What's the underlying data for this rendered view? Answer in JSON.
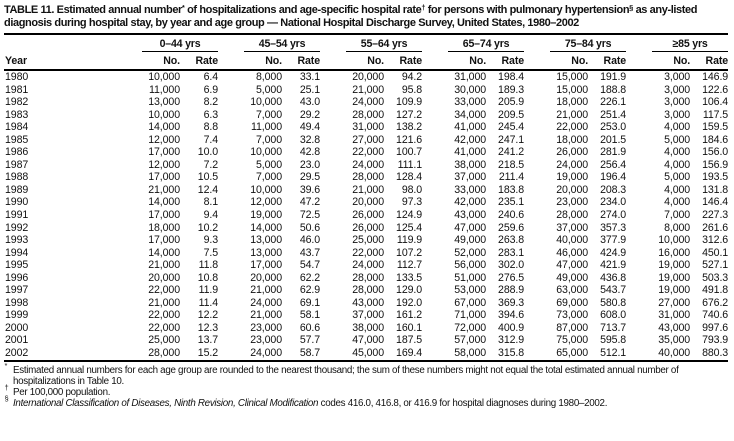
{
  "page": {
    "background": "#ffffff",
    "text_color": "#111111",
    "rule_color": "#000000"
  },
  "table": {
    "title_parts": [
      {
        "t": "TABLE 11. Estimated annual number"
      },
      {
        "t": "*",
        "sup": true
      },
      {
        "t": " of hospitalizations and age-specific hospital rate"
      },
      {
        "t": "†",
        "sup": true
      },
      {
        "t": " for persons with pulmonary hypertension"
      },
      {
        "t": "§",
        "sup": true
      },
      {
        "t": " as any-listed diagnosis during hospital stay, by year and age group — National Hospital Discharge Survey, United States, 1980–2002"
      }
    ],
    "year_header": "Year",
    "age_groups": [
      "0–44 yrs",
      "45–54 yrs",
      "55–64 yrs",
      "65–74 yrs",
      "75–84 yrs",
      "≥85 yrs"
    ],
    "subheaders": [
      "No.",
      "Rate"
    ],
    "rows": [
      {
        "year": "1980",
        "values": [
          "10,000",
          "6.4",
          "8,000",
          "33.1",
          "20,000",
          "94.2",
          "31,000",
          "198.4",
          "15,000",
          "191.9",
          "3,000",
          "146.9"
        ]
      },
      {
        "year": "1981",
        "values": [
          "11,000",
          "6.9",
          "5,000",
          "25.1",
          "21,000",
          "95.8",
          "30,000",
          "189.3",
          "15,000",
          "188.8",
          "3,000",
          "122.6"
        ]
      },
      {
        "year": "1982",
        "values": [
          "13,000",
          "8.2",
          "10,000",
          "43.0",
          "24,000",
          "109.9",
          "33,000",
          "205.9",
          "18,000",
          "226.1",
          "3,000",
          "106.4"
        ]
      },
      {
        "year": "1983",
        "values": [
          "10,000",
          "6.3",
          "7,000",
          "29.2",
          "28,000",
          "127.2",
          "34,000",
          "209.5",
          "21,000",
          "251.4",
          "3,000",
          "117.5"
        ]
      },
      {
        "year": "1984",
        "values": [
          "14,000",
          "8.8",
          "11,000",
          "49.4",
          "31,000",
          "138.2",
          "41,000",
          "245.4",
          "22,000",
          "253.0",
          "4,000",
          "159.5"
        ]
      },
      {
        "year": "1985",
        "values": [
          "12,000",
          "7.4",
          "7,000",
          "32.8",
          "27,000",
          "121.6",
          "42,000",
          "247.1",
          "18,000",
          "201.5",
          "5,000",
          "184.6"
        ]
      },
      {
        "year": "1986",
        "values": [
          "17,000",
          "10.0",
          "10,000",
          "42.8",
          "22,000",
          "100.7",
          "41,000",
          "241.2",
          "26,000",
          "281.9",
          "4,000",
          "156.0"
        ]
      },
      {
        "year": "1987",
        "values": [
          "12,000",
          "7.2",
          "5,000",
          "23.0",
          "24,000",
          "111.1",
          "38,000",
          "218.5",
          "24,000",
          "256.4",
          "4,000",
          "156.9"
        ]
      },
      {
        "year": "1988",
        "values": [
          "17,000",
          "10.5",
          "7,000",
          "29.5",
          "28,000",
          "128.4",
          "37,000",
          "211.4",
          "19,000",
          "196.4",
          "5,000",
          "193.5"
        ]
      },
      {
        "year": "1989",
        "values": [
          "21,000",
          "12.4",
          "10,000",
          "39.6",
          "21,000",
          "98.0",
          "33,000",
          "183.8",
          "20,000",
          "208.3",
          "4,000",
          "131.8"
        ]
      },
      {
        "year": "1990",
        "values": [
          "14,000",
          "8.1",
          "12,000",
          "47.2",
          "20,000",
          "97.3",
          "42,000",
          "235.1",
          "23,000",
          "234.0",
          "4,000",
          "146.4"
        ]
      },
      {
        "year": "1991",
        "values": [
          "17,000",
          "9.4",
          "19,000",
          "72.5",
          "26,000",
          "124.9",
          "43,000",
          "240.6",
          "28,000",
          "274.0",
          "7,000",
          "227.3"
        ]
      },
      {
        "year": "1992",
        "values": [
          "18,000",
          "10.2",
          "14,000",
          "50.6",
          "26,000",
          "125.4",
          "47,000",
          "259.6",
          "37,000",
          "357.3",
          "8,000",
          "261.6"
        ]
      },
      {
        "year": "1993",
        "values": [
          "17,000",
          "9.3",
          "13,000",
          "46.0",
          "25,000",
          "119.9",
          "49,000",
          "263.8",
          "40,000",
          "377.9",
          "10,000",
          "312.6"
        ]
      },
      {
        "year": "1994",
        "values": [
          "14,000",
          "7.5",
          "13,000",
          "43.7",
          "22,000",
          "107.2",
          "52,000",
          "283.1",
          "46,000",
          "424.9",
          "16,000",
          "450.1"
        ]
      },
      {
        "year": "1995",
        "values": [
          "21,000",
          "11.8",
          "17,000",
          "54.7",
          "24,000",
          "112.7",
          "56,000",
          "302.0",
          "47,000",
          "421.9",
          "19,000",
          "527.1"
        ]
      },
      {
        "year": "1996",
        "values": [
          "20,000",
          "10.8",
          "20,000",
          "62.2",
          "28,000",
          "133.5",
          "51,000",
          "276.5",
          "49,000",
          "436.8",
          "19,000",
          "503.3"
        ]
      },
      {
        "year": "1997",
        "values": [
          "22,000",
          "11.9",
          "21,000",
          "62.9",
          "28,000",
          "129.0",
          "53,000",
          "288.9",
          "63,000",
          "543.7",
          "19,000",
          "491.8"
        ]
      },
      {
        "year": "1998",
        "values": [
          "21,000",
          "11.4",
          "24,000",
          "69.1",
          "43,000",
          "192.0",
          "67,000",
          "369.3",
          "69,000",
          "580.8",
          "27,000",
          "676.2"
        ]
      },
      {
        "year": "1999",
        "values": [
          "22,000",
          "12.2",
          "21,000",
          "58.1",
          "37,000",
          "161.2",
          "71,000",
          "394.6",
          "73,000",
          "608.0",
          "31,000",
          "740.6"
        ]
      },
      {
        "year": "2000",
        "values": [
          "22,000",
          "12.3",
          "23,000",
          "60.6",
          "38,000",
          "160.1",
          "72,000",
          "400.9",
          "87,000",
          "713.7",
          "43,000",
          "997.6"
        ]
      },
      {
        "year": "2001",
        "values": [
          "25,000",
          "13.7",
          "23,000",
          "57.7",
          "47,000",
          "187.5",
          "57,000",
          "312.9",
          "75,000",
          "595.8",
          "35,000",
          "793.9"
        ]
      },
      {
        "year": "2002",
        "values": [
          "28,000",
          "15.2",
          "24,000",
          "58.7",
          "45,000",
          "169.4",
          "58,000",
          "315.8",
          "65,000",
          "512.1",
          "40,000",
          "880.3"
        ]
      }
    ],
    "footnotes": [
      {
        "marker": "*",
        "parts": [
          {
            "t": "Estimated annual numbers for each age group are rounded to the nearest thousand; the sum of these numbers might not equal the total estimated annual number of hospitalizations in Table 10."
          }
        ]
      },
      {
        "marker": "†",
        "parts": [
          {
            "t": "Per 100,000 population."
          }
        ]
      },
      {
        "marker": "§",
        "parts": [
          {
            "t": "International Classification of Diseases, Ninth Revision, Clinical Modification",
            "italic": true
          },
          {
            "t": " codes 416.0, 416.8, or 416.9 for hospital diagnoses during 1980–2002."
          }
        ]
      }
    ]
  }
}
